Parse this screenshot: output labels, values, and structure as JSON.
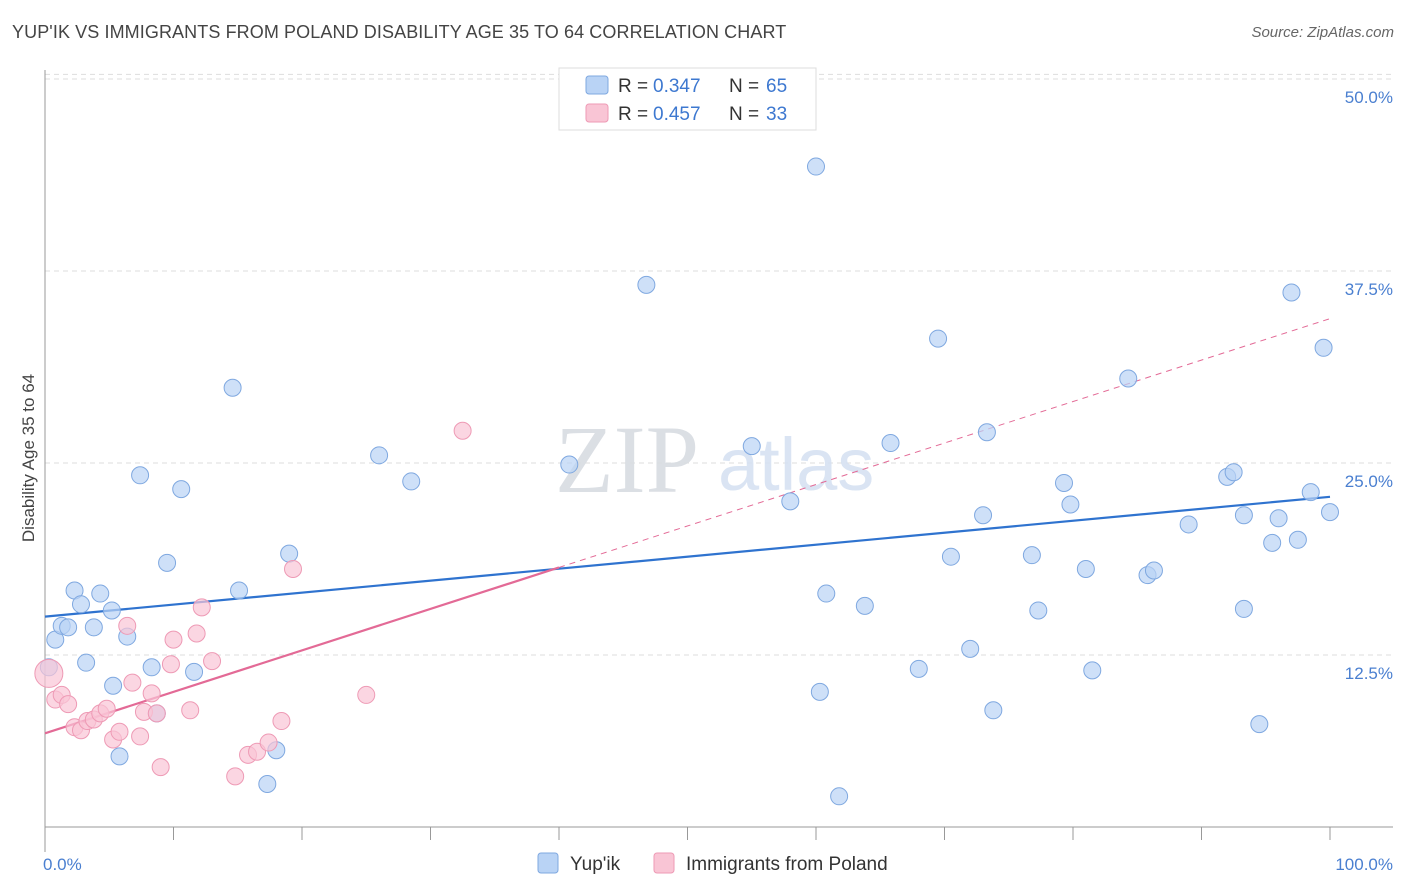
{
  "title": "YUP'IK VS IMMIGRANTS FROM POLAND DISABILITY AGE 35 TO 64 CORRELATION CHART",
  "source": "Source: ZipAtlas.com",
  "watermark": {
    "zip": "ZIP",
    "atlas": "atlas"
  },
  "colors": {
    "blue_fill": "#b9d3f5",
    "blue_stroke": "#7fa8e0",
    "blue_line": "#2f73cf",
    "pink_fill": "#f9c5d5",
    "pink_stroke": "#ee9ab5",
    "pink_line": "#e36a96",
    "grid": "#dddddd",
    "axis_text": "#4a7fd0"
  },
  "legend": [
    {
      "r_label": "R = ",
      "r_value": "0.347",
      "n_label": "N = ",
      "n_value": "65"
    },
    {
      "r_label": "R = ",
      "r_value": "0.457",
      "n_label": "N = ",
      "n_value": "33"
    }
  ],
  "chart_data": {
    "type": "scatter",
    "title": "YUP'IK VS IMMIGRANTS FROM POLAND DISABILITY AGE 35 TO 64 CORRELATION CHART",
    "xlabel": "",
    "ylabel": "Disability Age 35 to 64",
    "xlim": [
      0,
      100
    ],
    "ylim": [
      0,
      52
    ],
    "x_tick_labels": [
      {
        "value": 0,
        "label": "0.0%"
      },
      {
        "value": 100,
        "label": "100.0%"
      }
    ],
    "y_ticks": [
      {
        "value": 12.5,
        "label": "12.5%"
      },
      {
        "value": 25,
        "label": "25.0%"
      },
      {
        "value": 37.5,
        "label": "37.5%"
      },
      {
        "value": 50,
        "label": "50.0%"
      }
    ],
    "legend_position": "top-center",
    "series": [
      {
        "name": "Yup'ik",
        "color": "blue",
        "R": 0.347,
        "N": 65,
        "trend": {
          "x": [
            0,
            100
          ],
          "y": [
            15.0,
            22.8
          ],
          "style": "solid"
        },
        "points": [
          [
            0.3,
            11.7
          ],
          [
            0.8,
            13.5
          ],
          [
            1.3,
            14.4
          ],
          [
            1.8,
            14.3
          ],
          [
            2.3,
            16.7
          ],
          [
            2.8,
            15.8
          ],
          [
            3.2,
            12.0
          ],
          [
            3.8,
            14.3
          ],
          [
            4.3,
            16.5
          ],
          [
            5.2,
            15.4
          ],
          [
            5.3,
            10.5
          ],
          [
            5.8,
            5.9
          ],
          [
            6.4,
            13.7
          ],
          [
            7.4,
            24.2
          ],
          [
            8.3,
            11.7
          ],
          [
            8.7,
            8.7
          ],
          [
            9.5,
            18.5
          ],
          [
            10.6,
            23.3
          ],
          [
            11.6,
            11.4
          ],
          [
            14.6,
            29.9
          ],
          [
            15.1,
            16.7
          ],
          [
            18.0,
            6.3
          ],
          [
            17.3,
            4.1
          ],
          [
            19.0,
            19.1
          ],
          [
            26.0,
            25.5
          ],
          [
            28.5,
            23.8
          ],
          [
            40.8,
            24.9
          ],
          [
            46.8,
            36.6
          ],
          [
            55.0,
            26.1
          ],
          [
            58.0,
            22.5
          ],
          [
            60.0,
            44.3
          ],
          [
            60.3,
            10.1
          ],
          [
            60.8,
            16.5
          ],
          [
            61.8,
            3.3
          ],
          [
            63.8,
            15.7
          ],
          [
            65.8,
            26.3
          ],
          [
            68.0,
            11.6
          ],
          [
            69.5,
            33.1
          ],
          [
            70.5,
            18.9
          ],
          [
            72.0,
            12.9
          ],
          [
            73.0,
            21.6
          ],
          [
            73.3,
            27.0
          ],
          [
            73.8,
            8.9
          ],
          [
            76.8,
            19.0
          ],
          [
            77.3,
            15.4
          ],
          [
            79.3,
            23.7
          ],
          [
            79.8,
            22.3
          ],
          [
            81.0,
            18.1
          ],
          [
            81.5,
            11.5
          ],
          [
            84.3,
            30.5
          ],
          [
            85.8,
            17.7
          ],
          [
            86.3,
            18.0
          ],
          [
            89.0,
            21.0
          ],
          [
            92.0,
            24.1
          ],
          [
            92.5,
            24.4
          ],
          [
            93.3,
            21.6
          ],
          [
            93.3,
            15.5
          ],
          [
            94.5,
            8.0
          ],
          [
            95.5,
            19.8
          ],
          [
            96.0,
            21.4
          ],
          [
            97.0,
            36.1
          ],
          [
            97.5,
            20.0
          ],
          [
            98.5,
            23.1
          ],
          [
            99.5,
            32.5
          ],
          [
            100.0,
            21.8
          ]
        ]
      },
      {
        "name": "Immigrants from Poland",
        "color": "pink",
        "R": 0.457,
        "N": 33,
        "trend": {
          "x": [
            0,
            40
          ],
          "y": [
            7.4,
            18.2
          ],
          "style": "solid"
        },
        "trend_ext": {
          "x": [
            40,
            100
          ],
          "y": [
            18.2,
            34.4
          ],
          "style": "dashed"
        },
        "points": [
          [
            0.3,
            11.3
          ],
          [
            0.8,
            9.6
          ],
          [
            1.3,
            9.9
          ],
          [
            1.8,
            9.3
          ],
          [
            2.3,
            7.8
          ],
          [
            2.8,
            7.6
          ],
          [
            3.3,
            8.2
          ],
          [
            3.8,
            8.3
          ],
          [
            4.3,
            8.7
          ],
          [
            4.8,
            9.0
          ],
          [
            5.3,
            7.0
          ],
          [
            5.8,
            7.5
          ],
          [
            6.4,
            14.4
          ],
          [
            6.8,
            10.7
          ],
          [
            7.4,
            7.2
          ],
          [
            7.7,
            8.8
          ],
          [
            8.3,
            10.0
          ],
          [
            8.7,
            8.7
          ],
          [
            9.0,
            5.2
          ],
          [
            9.8,
            11.9
          ],
          [
            10.0,
            13.5
          ],
          [
            11.3,
            8.9
          ],
          [
            11.8,
            13.9
          ],
          [
            12.2,
            15.6
          ],
          [
            13.0,
            12.1
          ],
          [
            14.8,
            4.6
          ],
          [
            15.8,
            6.0
          ],
          [
            16.5,
            6.2
          ],
          [
            17.4,
            6.8
          ],
          [
            18.4,
            8.2
          ],
          [
            19.3,
            18.1
          ],
          [
            25.0,
            9.9
          ],
          [
            32.5,
            27.1
          ]
        ]
      }
    ]
  },
  "bottom_legend": [
    {
      "label": "Yup'ik"
    },
    {
      "label": "Immigrants from Poland"
    }
  ]
}
